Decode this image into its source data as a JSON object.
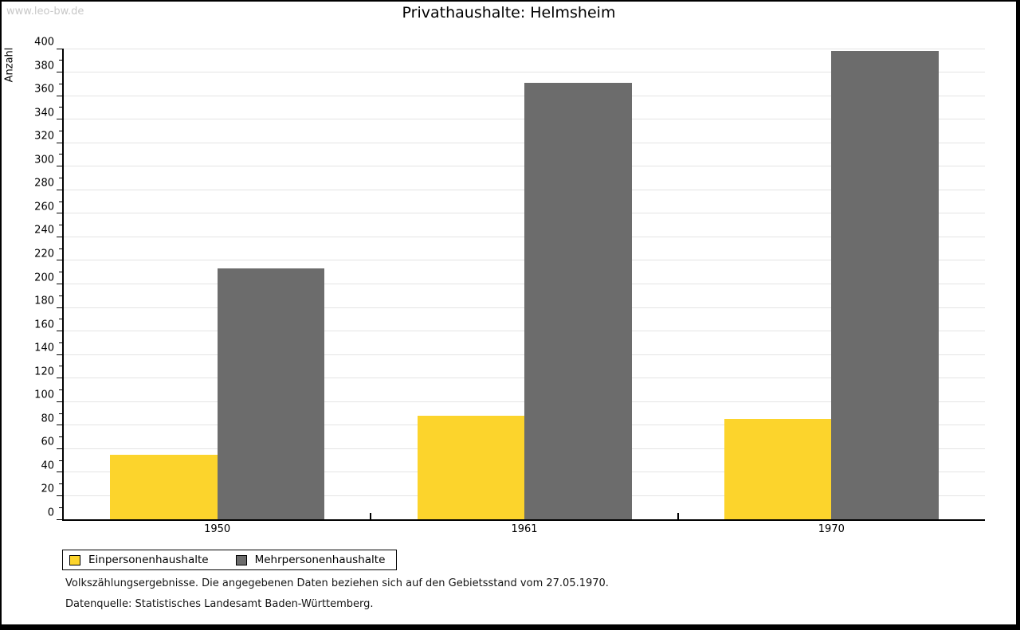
{
  "watermark": "www.leo-bw.de",
  "title": "Privathaushalte: Helmsheim",
  "chart_data": {
    "type": "bar",
    "title": "Privathaushalte: Helmsheim",
    "categories": [
      "1950",
      "1961",
      "1970"
    ],
    "series": [
      {
        "name": "Einpersonenhaushalte",
        "color": "#fcd42c",
        "values": [
          55,
          88,
          85
        ]
      },
      {
        "name": "Mehrpersonenhaushalte",
        "color": "#6c6c6c",
        "values": [
          213,
          371,
          398
        ]
      }
    ],
    "xlabel": "",
    "ylabel": "Anzahl",
    "ylim": [
      0,
      400
    ],
    "yticks": [
      0,
      20,
      40,
      60,
      80,
      100,
      120,
      140,
      160,
      180,
      200,
      220,
      240,
      260,
      280,
      300,
      320,
      340,
      360,
      380,
      400
    ],
    "yminor_step": 10,
    "grid": true,
    "gridline_color": "#e4e4e4",
    "legend_position": "bottom-left"
  },
  "legend": {
    "items": [
      {
        "label": "Einpersonenhaushalte",
        "color": "#fcd42c"
      },
      {
        "label": "Mehrpersonenhaushalte",
        "color": "#6c6c6c"
      }
    ]
  },
  "footer": {
    "line1": "Volkszählungsergebnisse. Die angegebenen Daten beziehen sich auf den Gebietsstand vom 27.05.1970.",
    "line2": "Datenquelle: Statistisches Landesamt Baden-Württemberg."
  }
}
